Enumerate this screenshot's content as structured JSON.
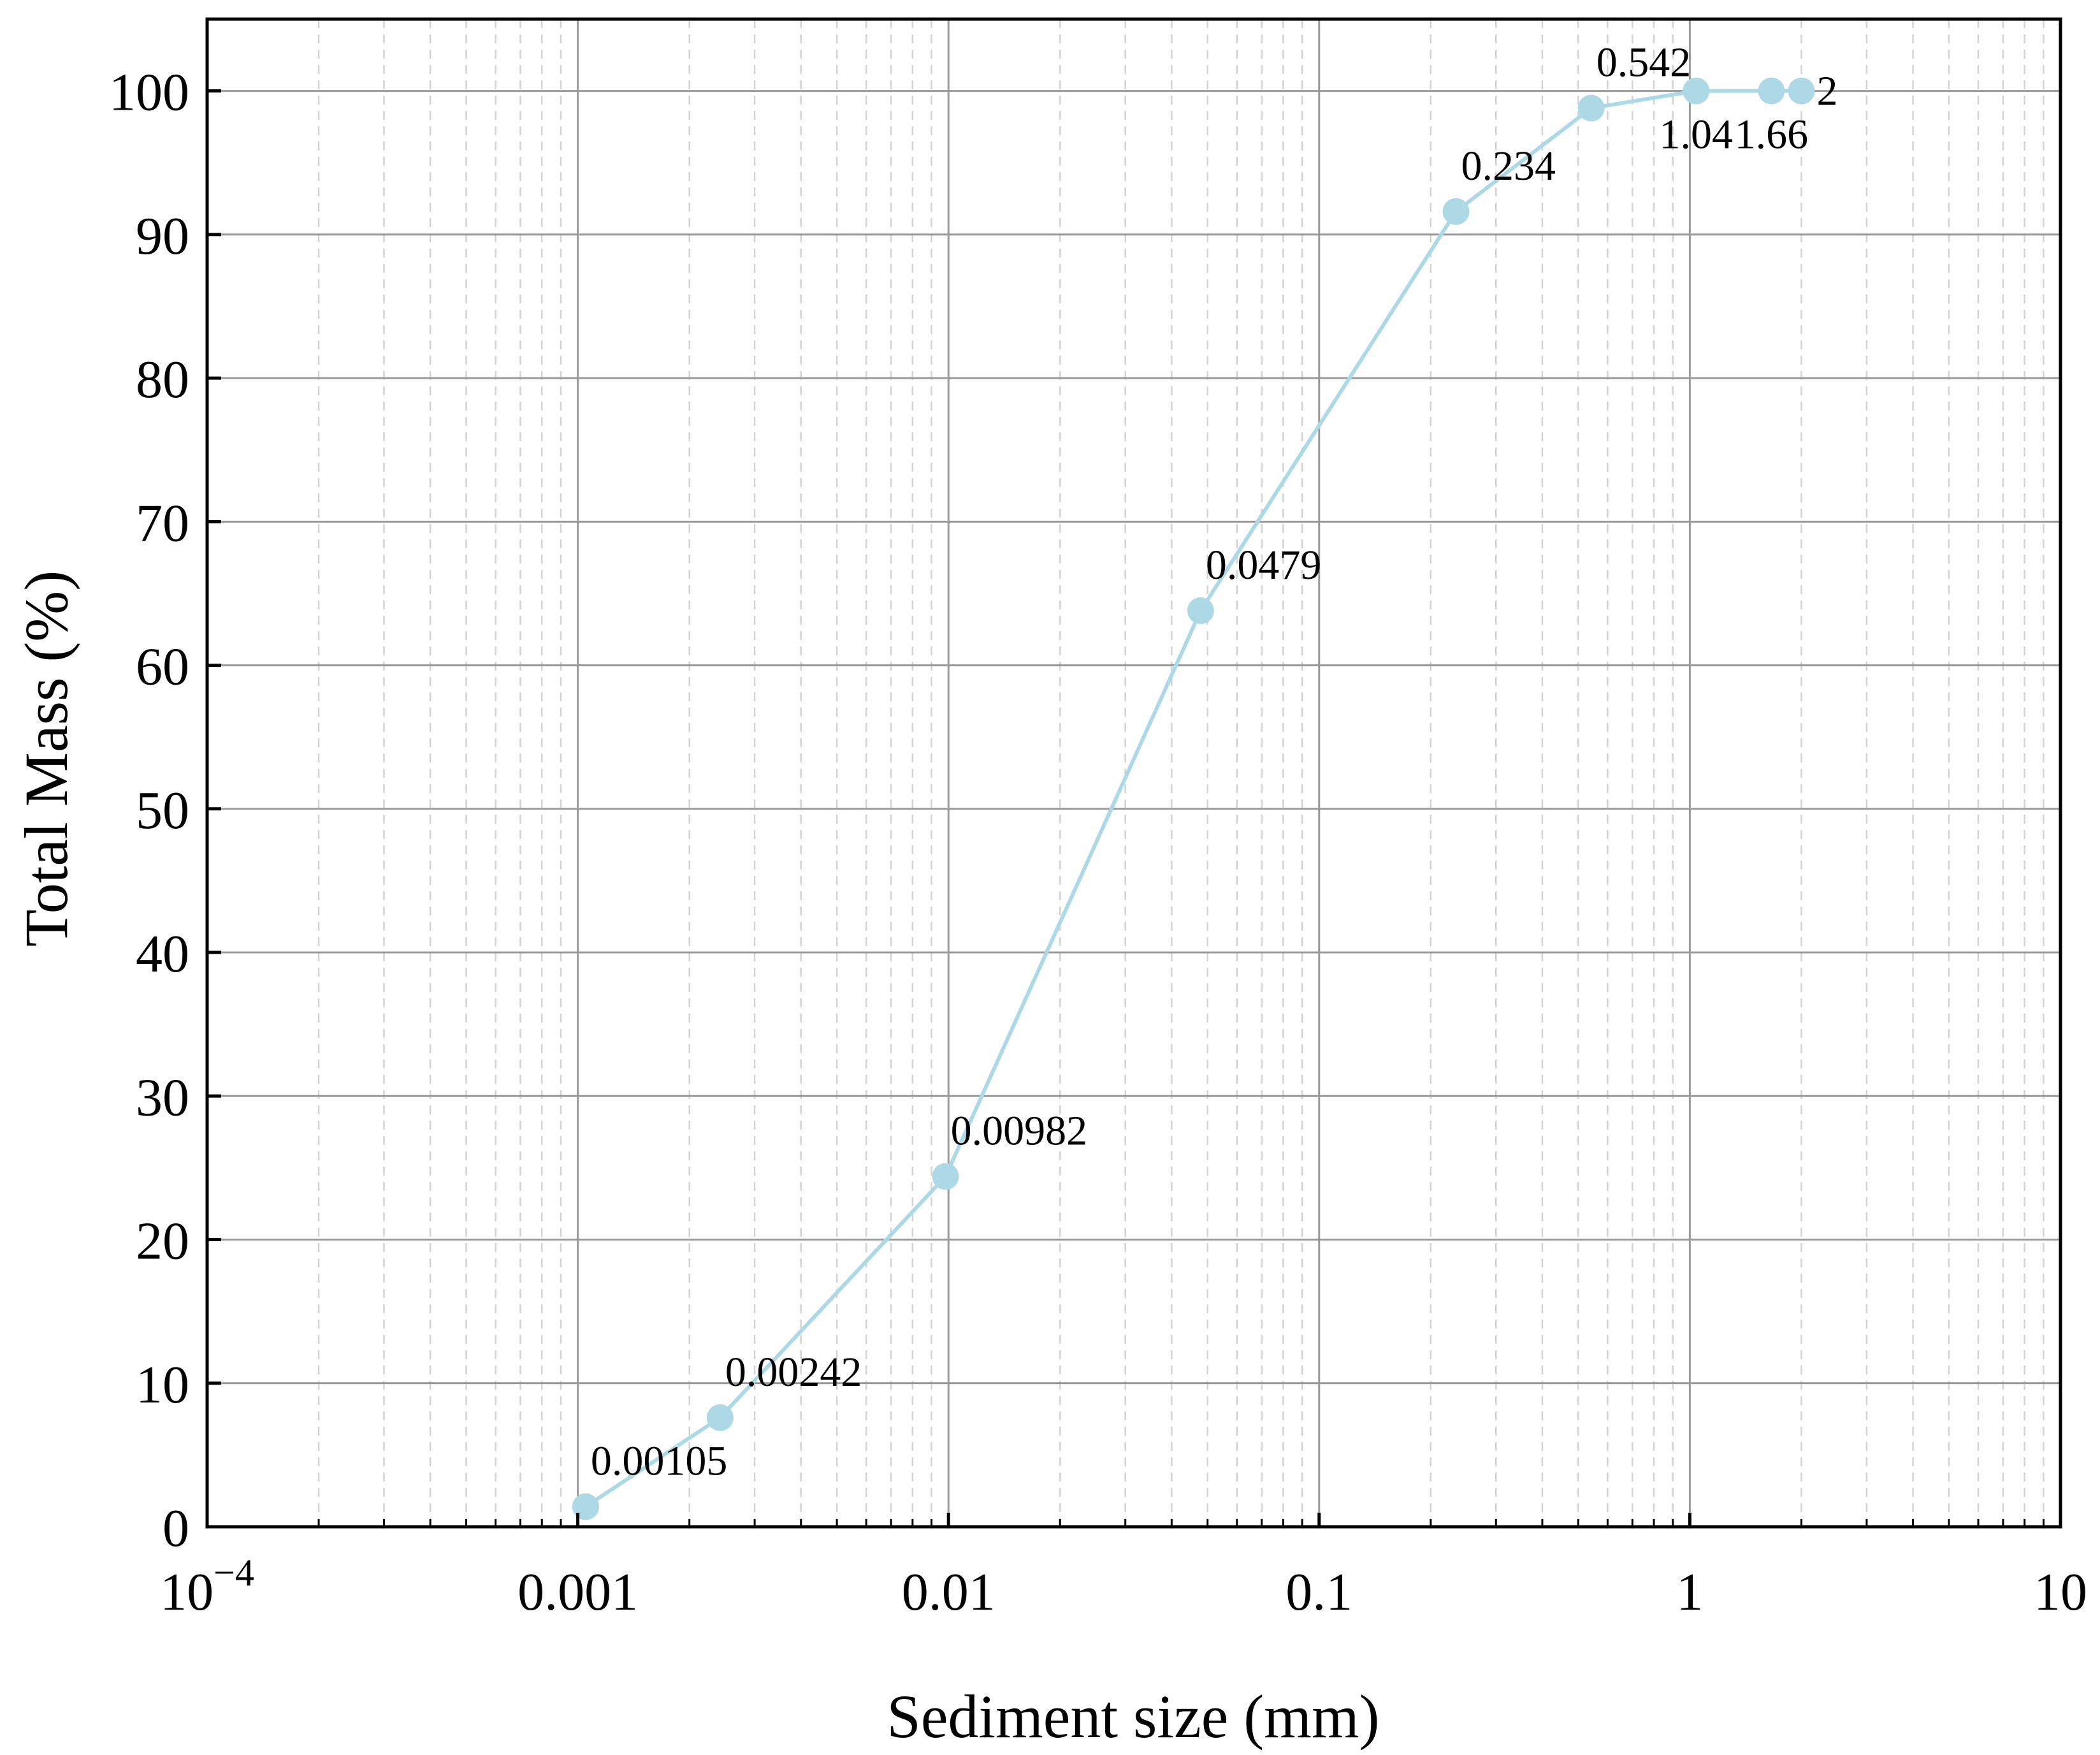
{
  "chart_data": {
    "type": "scatter",
    "xlabel": "Sediment size (mm)",
    "ylabel": "Total Mass (%)",
    "xscale": "log",
    "xlim": [
      0.0001,
      10
    ],
    "ylim": [
      0,
      105
    ],
    "x_ticks": [
      {
        "value": 0.0001,
        "base": "10",
        "exp": "−4"
      },
      {
        "value": 0.001,
        "label": "0.001"
      },
      {
        "value": 0.01,
        "label": "0.01"
      },
      {
        "value": 0.1,
        "label": "0.1"
      },
      {
        "value": 1,
        "label": "1"
      },
      {
        "value": 10,
        "label": "10"
      }
    ],
    "y_ticks": [
      {
        "value": 0,
        "label": "0"
      },
      {
        "value": 10,
        "label": "10"
      },
      {
        "value": 20,
        "label": "20"
      },
      {
        "value": 30,
        "label": "30"
      },
      {
        "value": 40,
        "label": "40"
      },
      {
        "value": 50,
        "label": "50"
      },
      {
        "value": 60,
        "label": "60"
      },
      {
        "value": 70,
        "label": "70"
      },
      {
        "value": 80,
        "label": "80"
      },
      {
        "value": 90,
        "label": "90"
      },
      {
        "value": 100,
        "label": "100"
      }
    ],
    "grid": true,
    "minor_grid": true,
    "connected": true,
    "series_color": "#add8e6",
    "points": [
      {
        "x": 0.00105,
        "y": 1.4,
        "label": "0.00105",
        "pos": "above"
      },
      {
        "x": 0.00242,
        "y": 7.6,
        "label": "0.00242",
        "pos": "above"
      },
      {
        "x": 0.00982,
        "y": 24.4,
        "label": "0.00982",
        "pos": "above"
      },
      {
        "x": 0.0479,
        "y": 63.8,
        "label": "0.0479",
        "pos": "above"
      },
      {
        "x": 0.234,
        "y": 91.6,
        "label": "0.234",
        "pos": "above"
      },
      {
        "x": 0.542,
        "y": 98.8,
        "label": "0.542",
        "pos": "above"
      },
      {
        "x": 1.04,
        "y": 100,
        "label": "1.04",
        "pos": "below"
      },
      {
        "x": 1.66,
        "y": 100,
        "label": "1.66",
        "pos": "below"
      },
      {
        "x": 2,
        "y": 100,
        "label": "2",
        "pos": "right"
      }
    ]
  }
}
